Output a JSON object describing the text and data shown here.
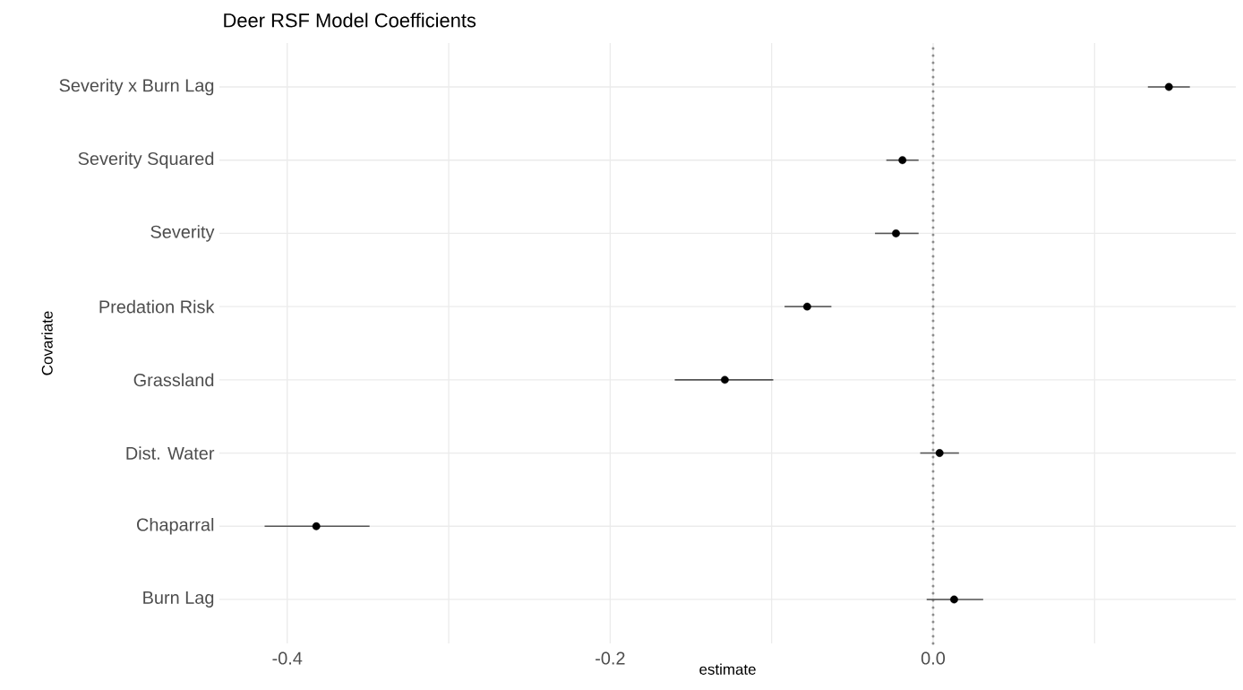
{
  "chart_data": {
    "type": "scatter",
    "orientation": "horizontal",
    "title": "Deer RSF Model Coefficients",
    "xlabel": "estimate",
    "ylabel": "Covariate",
    "categories": [
      "Severity x Burn Lag",
      "Severity Squared",
      "Severity",
      "Predation Risk",
      "Grassland",
      "Dist. Water",
      "Chaparral",
      "Burn Lag"
    ],
    "values": [
      0.146,
      -0.019,
      -0.023,
      -0.078,
      -0.129,
      0.004,
      -0.382,
      0.013
    ],
    "errors": [
      [
        0.133,
        0.159
      ],
      [
        -0.029,
        -0.009
      ],
      [
        -0.036,
        -0.009
      ],
      [
        -0.092,
        -0.063
      ],
      [
        -0.16,
        -0.099
      ],
      [
        -0.008,
        0.016
      ],
      [
        -0.414,
        -0.349
      ],
      [
        -0.004,
        0.031
      ]
    ],
    "color": "#000000",
    "marker": "circle",
    "xlim": [
      -0.442,
      0.1875
    ],
    "xticks": [
      -0.4,
      {
        "value": -0.3,
        "label": null
      },
      -0.2,
      {
        "value": -0.1,
        "label": null
      },
      {
        "value": 0.0,
        "label": "0.0"
      },
      {
        "value": 0.1,
        "label": null
      }
    ],
    "ref_lines": [
      {
        "axis": "x",
        "value": 0,
        "line_style": "dotted",
        "color": "#8c8c8c"
      }
    ],
    "grid": true
  }
}
